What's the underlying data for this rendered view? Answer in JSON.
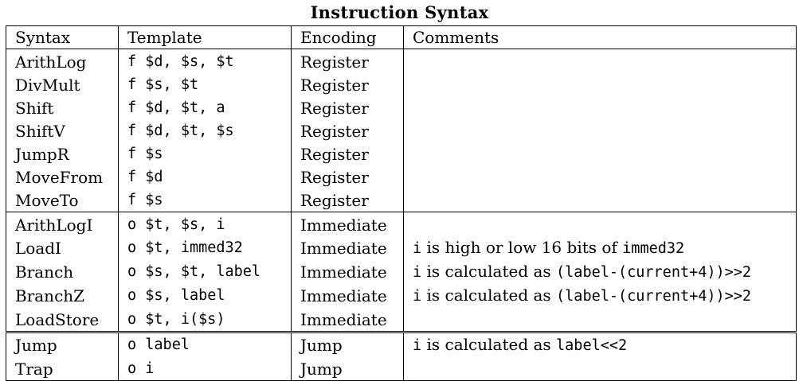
{
  "title": "Instruction Syntax",
  "columns": [
    "Syntax",
    "Template",
    "Encoding",
    "Comments"
  ],
  "groups": [
    {
      "rows": [
        {
          "syntax": "ArithLog",
          "template": "f $d, $s, $t",
          "encoding": "Register",
          "comment": []
        },
        {
          "syntax": "DivMult",
          "template": "f $s, $t",
          "encoding": "Register",
          "comment": []
        },
        {
          "syntax": "Shift",
          "template": "f $d, $t, a",
          "encoding": "Register",
          "comment": []
        },
        {
          "syntax": "ShiftV",
          "template": "f $d, $t, $s",
          "encoding": "Register",
          "comment": []
        },
        {
          "syntax": "JumpR",
          "template": "f $s",
          "encoding": "Register",
          "comment": []
        },
        {
          "syntax": "MoveFrom",
          "template": "f $d",
          "encoding": "Register",
          "comment": []
        },
        {
          "syntax": "MoveTo",
          "template": "f $s",
          "encoding": "Register",
          "comment": []
        }
      ]
    },
    {
      "rows": [
        {
          "syntax": "ArithLogI",
          "template": "o $t, $s, i",
          "encoding": "Immediate",
          "comment": []
        },
        {
          "syntax": "LoadI",
          "template": "o $t, immed32",
          "encoding": "Immediate",
          "comment": [
            {
              "t": "i",
              "m": true
            },
            {
              "t": " is high or low 16 bits of ",
              "m": false
            },
            {
              "t": "immed32",
              "m": true
            }
          ]
        },
        {
          "syntax": "Branch",
          "template": "o $s, $t, label",
          "encoding": "Immediate",
          "comment": [
            {
              "t": "i",
              "m": true
            },
            {
              "t": " is calculated as ",
              "m": false
            },
            {
              "t": "(label-(current+4))>>2",
              "m": true
            }
          ]
        },
        {
          "syntax": "BranchZ",
          "template": "o $s, label",
          "encoding": "Immediate",
          "comment": [
            {
              "t": "i",
              "m": true
            },
            {
              "t": " is calculated as ",
              "m": false
            },
            {
              "t": "(label-(current+4))>>2",
              "m": true
            }
          ]
        },
        {
          "syntax": "LoadStore",
          "template": "o $t, i($s)",
          "encoding": "Immediate",
          "comment": []
        }
      ]
    },
    {
      "rows": [
        {
          "syntax": "Jump",
          "template": "o label",
          "encoding": "Jump",
          "comment": [
            {
              "t": "i",
              "m": true
            },
            {
              "t": " is calculated as ",
              "m": false
            },
            {
              "t": "label<<2",
              "m": true
            }
          ]
        },
        {
          "syntax": "Trap",
          "template": "o i",
          "encoding": "Jump",
          "comment": []
        }
      ]
    }
  ]
}
